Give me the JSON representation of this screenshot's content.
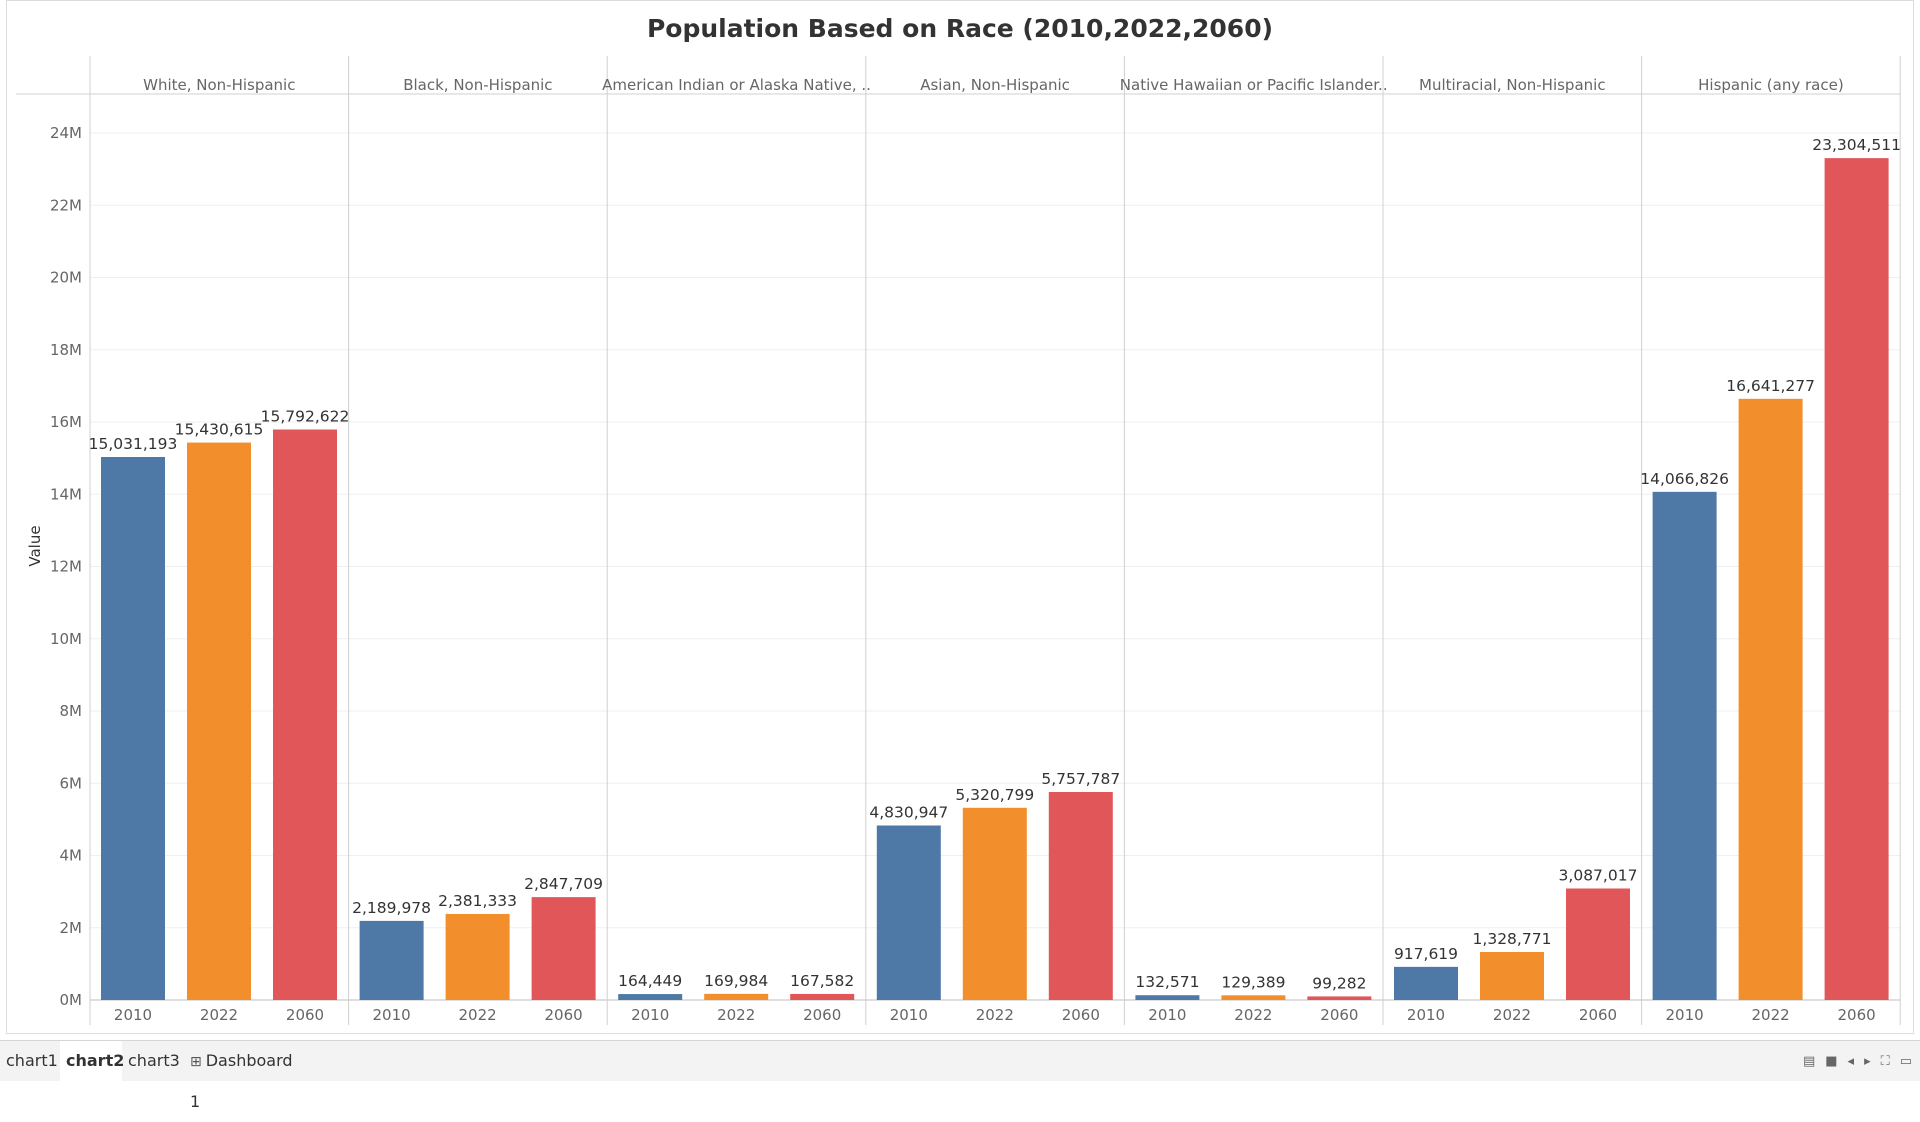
{
  "title": "Population Based on Race (2010,2022,2060)",
  "tabs": [
    {
      "label": "chart1",
      "active": false
    },
    {
      "label": "chart2",
      "active": true
    },
    {
      "label": "chart3",
      "active": false
    },
    {
      "label": "Dashboard 1",
      "active": false,
      "icon": "dashboard-icon"
    }
  ],
  "colors": {
    "2010": "#4e79a7",
    "2022": "#f28e2b",
    "2060": "#e15759"
  },
  "chart_data": {
    "type": "bar",
    "title": "Population Based on Race (2010,2022,2060)",
    "ylabel": "Value",
    "xlabel": "",
    "ylim": [
      0,
      24000000
    ],
    "yticks": [
      "0M",
      "2M",
      "4M",
      "6M",
      "8M",
      "10M",
      "12M",
      "14M",
      "16M",
      "18M",
      "20M",
      "22M",
      "24M"
    ],
    "categories": [
      "2010",
      "2022",
      "2060"
    ],
    "panels": [
      {
        "name": "White, Non-Hispanic",
        "values": [
          15031193,
          15430615,
          15792622
        ],
        "labels": [
          "15,031,193",
          "15,430,615",
          "15,792,622"
        ]
      },
      {
        "name": "Black, Non-Hispanic",
        "values": [
          2189978,
          2381333,
          2847709
        ],
        "labels": [
          "2,189,978",
          "2,381,333",
          "2,847,709"
        ]
      },
      {
        "name": "American Indian or Alaska Native, ..",
        "values": [
          164449,
          169984,
          167582
        ],
        "labels": [
          "164,449",
          "169,984",
          "167,582"
        ]
      },
      {
        "name": "Asian, Non-Hispanic",
        "values": [
          4830947,
          5320799,
          5757787
        ],
        "labels": [
          "4,830,947",
          "5,320,799",
          "5,757,787"
        ]
      },
      {
        "name": "Native Hawaiian or Pacific Islander..",
        "values": [
          132571,
          129389,
          99282
        ],
        "labels": [
          "132,571",
          "129,389",
          "99,282"
        ]
      },
      {
        "name": "Multiracial, Non-Hispanic",
        "values": [
          917619,
          1328771,
          3087017
        ],
        "labels": [
          "917,619",
          "1,328,771",
          "3,087,017"
        ]
      },
      {
        "name": "Hispanic (any race)",
        "values": [
          14066826,
          16641277,
          23304511
        ],
        "labels": [
          "14,066,826",
          "16,641,277",
          "23,304,511"
        ]
      }
    ],
    "grid": true,
    "legend": "none"
  }
}
